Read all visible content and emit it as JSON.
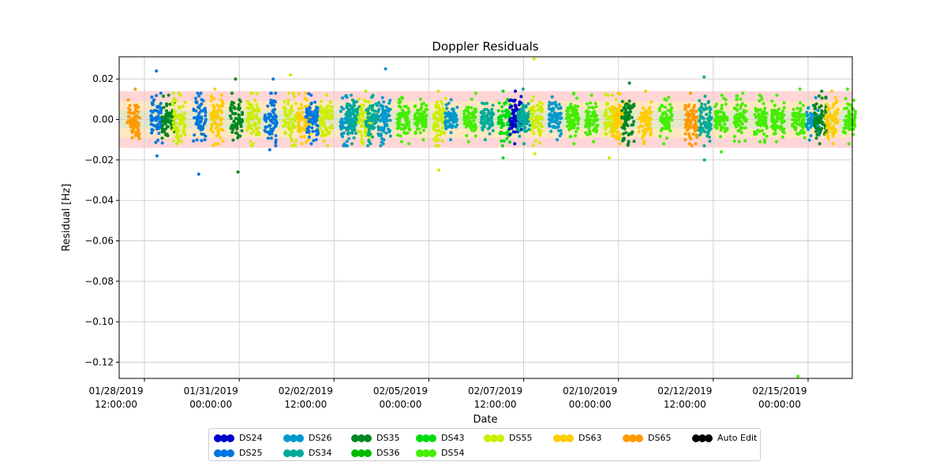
{
  "chart_data": {
    "type": "scatter",
    "title": "Doppler Residuals",
    "xlabel": "Date",
    "ylabel": "Residual [Hz]",
    "ylim": [
      -0.128,
      0.031
    ],
    "xlim": [
      "2019-01-27T20:00:00",
      "2019-02-16T04:00:00"
    ],
    "yticks": [
      0.02,
      0.0,
      -0.02,
      -0.04,
      -0.06,
      -0.08,
      -0.1,
      -0.12
    ],
    "ytick_labels": [
      "0.02",
      "0.00",
      "−0.02",
      "−0.04",
      "−0.06",
      "−0.08",
      "−0.10",
      "−0.12"
    ],
    "xticks": [
      {
        "value": "2019-01-28T12:00:00",
        "line1": "01/28/2019",
        "line2": "12:00:00"
      },
      {
        "value": "2019-01-31T00:00:00",
        "line1": "01/31/2019",
        "line2": "00:00:00"
      },
      {
        "value": "2019-02-02T12:00:00",
        "line1": "02/02/2019",
        "line2": "12:00:00"
      },
      {
        "value": "2019-02-05T00:00:00",
        "line1": "02/05/2019",
        "line2": "00:00:00"
      },
      {
        "value": "2019-02-07T12:00:00",
        "line1": "02/07/2019",
        "line2": "12:00:00"
      },
      {
        "value": "2019-02-10T00:00:00",
        "line1": "02/10/2019",
        "line2": "00:00:00"
      },
      {
        "value": "2019-02-12T12:00:00",
        "line1": "02/12/2019",
        "line2": "12:00:00"
      },
      {
        "value": "2019-02-15T00:00:00",
        "line1": "02/15/2019",
        "line2": "00:00:00"
      }
    ],
    "grid": true,
    "bands": [
      {
        "y0": -0.014,
        "y1": 0.014,
        "color": "#ffb3b3"
      },
      {
        "y0": -0.009,
        "y1": 0.009,
        "color": "#fff5b0"
      },
      {
        "y0": -0.0045,
        "y1": 0.0045,
        "color": "#cfe8cf"
      }
    ],
    "legend_position": "below",
    "series": [
      {
        "name": "DS24",
        "color": "#0000cc"
      },
      {
        "name": "DS25",
        "color": "#0077dd"
      },
      {
        "name": "DS26",
        "color": "#0099cc"
      },
      {
        "name": "DS34",
        "color": "#00aa99"
      },
      {
        "name": "DS35",
        "color": "#008822"
      },
      {
        "name": "DS36",
        "color": "#00bb00"
      },
      {
        "name": "DS43",
        "color": "#00dd11"
      },
      {
        "name": "DS54",
        "color": "#44ee00"
      },
      {
        "name": "DS55",
        "color": "#ccee00"
      },
      {
        "name": "DS63",
        "color": "#ffcc00"
      },
      {
        "name": "DS65",
        "color": "#ff9900"
      },
      {
        "name": "Auto Edit",
        "color": "#000000"
      }
    ],
    "passes": [
      {
        "center": "2019-01-28T05:00:00",
        "series": "DS65",
        "spread": 0.0048,
        "min": -0.009,
        "max": 0.015
      },
      {
        "center": "2019-01-28T20:00:00",
        "series": "DS25",
        "spread": 0.0055,
        "min": -0.018,
        "max": 0.024
      },
      {
        "center": "2019-01-29T03:00:00",
        "series": "DS35",
        "spread": 0.004,
        "min": -0.008,
        "max": 0.012
      },
      {
        "center": "2019-01-29T10:00:00",
        "series": "DS55",
        "spread": 0.005,
        "min": -0.011,
        "max": 0.012
      },
      {
        "center": "2019-01-29T23:00:00",
        "series": "DS25",
        "spread": 0.005,
        "min": -0.027,
        "max": 0.013
      },
      {
        "center": "2019-01-30T10:00:00",
        "series": "DS63",
        "spread": 0.005,
        "min": -0.012,
        "max": 0.015
      },
      {
        "center": "2019-01-30T22:00:00",
        "series": "DS35",
        "spread": 0.005,
        "min": -0.026,
        "max": 0.02
      },
      {
        "center": "2019-01-31T09:00:00",
        "series": "DS55",
        "spread": 0.005,
        "min": -0.012,
        "max": 0.013
      },
      {
        "center": "2019-01-31T20:00:00",
        "series": "DS25",
        "spread": 0.006,
        "min": -0.015,
        "max": 0.02
      },
      {
        "center": "2019-02-01T08:00:00",
        "series": "DS55",
        "spread": 0.006,
        "min": -0.013,
        "max": 0.022
      },
      {
        "center": "2019-02-01T17:00:00",
        "series": "DS63",
        "spread": 0.005,
        "min": -0.012,
        "max": 0.013
      },
      {
        "center": "2019-02-01T22:00:00",
        "series": "DS25",
        "spread": 0.005,
        "min": -0.012,
        "max": 0.012
      },
      {
        "center": "2019-02-02T07:00:00",
        "series": "DS55",
        "spread": 0.005,
        "min": -0.013,
        "max": 0.012
      },
      {
        "center": "2019-02-02T20:00:00",
        "series": "DS26",
        "spread": 0.005,
        "min": -0.012,
        "max": 0.011
      },
      {
        "center": "2019-02-03T00:00:00",
        "series": "DS34",
        "spread": 0.005,
        "min": -0.012,
        "max": 0.012
      },
      {
        "center": "2019-02-03T07:00:00",
        "series": "DS55",
        "spread": 0.005,
        "min": -0.012,
        "max": 0.014
      },
      {
        "center": "2019-02-03T12:00:00",
        "series": "DS34",
        "spread": 0.005,
        "min": -0.012,
        "max": 0.011
      },
      {
        "center": "2019-02-03T20:00:00",
        "series": "DS26",
        "spread": 0.005,
        "min": -0.012,
        "max": 0.025
      },
      {
        "center": "2019-02-04T08:00:00",
        "series": "DS54",
        "spread": 0.004,
        "min": -0.011,
        "max": 0.011
      },
      {
        "center": "2019-02-04T19:00:00",
        "series": "DS54",
        "spread": 0.004,
        "min": -0.01,
        "max": 0.01
      },
      {
        "center": "2019-02-05T07:00:00",
        "series": "DS55",
        "spread": 0.005,
        "min": -0.025,
        "max": 0.014
      },
      {
        "center": "2019-02-05T14:00:00",
        "series": "DS26",
        "spread": 0.003,
        "min": -0.01,
        "max": 0.008
      },
      {
        "center": "2019-02-06T02:00:00",
        "series": "DS54",
        "spread": 0.004,
        "min": -0.011,
        "max": 0.01
      },
      {
        "center": "2019-02-06T13:00:00",
        "series": "DS34",
        "spread": 0.003,
        "min": -0.01,
        "max": 0.008
      },
      {
        "center": "2019-02-07T00:00:00",
        "series": "DS43",
        "spread": 0.005,
        "min": -0.019,
        "max": 0.014
      },
      {
        "center": "2019-02-07T07:00:00",
        "series": "DS24",
        "spread": 0.005,
        "min": -0.012,
        "max": 0.014
      },
      {
        "center": "2019-02-07T12:00:00",
        "series": "DS34",
        "spread": 0.004,
        "min": -0.012,
        "max": 0.015
      },
      {
        "center": "2019-02-07T20:00:00",
        "series": "DS55",
        "spread": 0.005,
        "min": -0.017,
        "max": 0.03
      },
      {
        "center": "2019-02-08T08:00:00",
        "series": "DS26",
        "spread": 0.004,
        "min": -0.01,
        "max": 0.008
      },
      {
        "center": "2019-02-08T19:00:00",
        "series": "DS54",
        "spread": 0.004,
        "min": -0.012,
        "max": 0.013
      },
      {
        "center": "2019-02-09T07:00:00",
        "series": "DS54",
        "spread": 0.004,
        "min": -0.011,
        "max": 0.012
      },
      {
        "center": "2019-02-09T19:00:00",
        "series": "DS55",
        "spread": 0.005,
        "min": -0.019,
        "max": 0.012
      },
      {
        "center": "2019-02-10T00:00:00",
        "series": "DS63",
        "spread": 0.005,
        "min": -0.012,
        "max": 0.013
      },
      {
        "center": "2019-02-10T06:00:00",
        "series": "DS35",
        "spread": 0.005,
        "min": -0.012,
        "max": 0.018
      },
      {
        "center": "2019-02-10T17:00:00",
        "series": "DS63",
        "spread": 0.005,
        "min": -0.012,
        "max": 0.014
      },
      {
        "center": "2019-02-11T06:00:00",
        "series": "DS54",
        "spread": 0.004,
        "min": -0.012,
        "max": 0.01
      },
      {
        "center": "2019-02-11T22:00:00",
        "series": "DS65",
        "spread": 0.005,
        "min": -0.012,
        "max": 0.013
      },
      {
        "center": "2019-02-12T07:00:00",
        "series": "DS34",
        "spread": 0.005,
        "min": -0.02,
        "max": 0.021
      },
      {
        "center": "2019-02-12T17:00:00",
        "series": "DS54",
        "spread": 0.004,
        "min": -0.016,
        "max": 0.012
      },
      {
        "center": "2019-02-13T05:00:00",
        "series": "DS54",
        "spread": 0.004,
        "min": -0.011,
        "max": 0.01
      },
      {
        "center": "2019-02-13T18:00:00",
        "series": "DS54",
        "spread": 0.004,
        "min": -0.011,
        "max": 0.012
      },
      {
        "center": "2019-02-14T05:00:00",
        "series": "DS54",
        "spread": 0.004,
        "min": -0.011,
        "max": 0.012
      },
      {
        "center": "2019-02-14T18:00:00",
        "series": "DS54",
        "spread": 0.004,
        "min": -0.127,
        "max": 0.015
      },
      {
        "center": "2019-02-15T03:00:00",
        "series": "DS26",
        "spread": 0.003,
        "min": -0.008,
        "max": 0.007
      },
      {
        "center": "2019-02-15T08:00:00",
        "series": "DS35",
        "spread": 0.005,
        "min": -0.012,
        "max": 0.014
      },
      {
        "center": "2019-02-15T15:00:00",
        "series": "DS63",
        "spread": 0.005,
        "min": -0.012,
        "max": 0.014
      },
      {
        "center": "2019-02-16T02:00:00",
        "series": "DS54",
        "spread": 0.004,
        "min": -0.012,
        "max": 0.015
      }
    ]
  }
}
